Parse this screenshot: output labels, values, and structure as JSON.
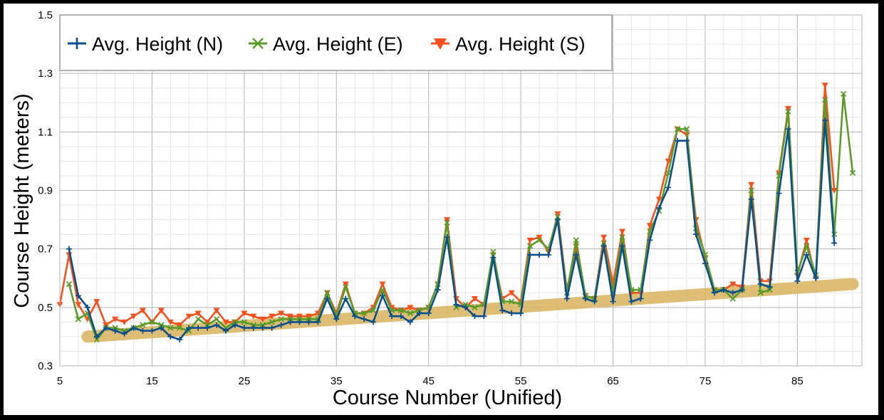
{
  "chart_data": {
    "type": "line",
    "title": "",
    "xlabel": "Course Number (Unified)",
    "ylabel": "Course Height (meters)",
    "xlim": [
      5,
      92
    ],
    "ylim": [
      0.3,
      1.5
    ],
    "xticks": [
      5,
      15,
      25,
      35,
      45,
      55,
      65,
      75,
      85
    ],
    "yticks": [
      0.3,
      0.5,
      0.7,
      0.9,
      1.1,
      1.3,
      1.5
    ],
    "grid": true,
    "legend_position": "top-left",
    "series": [
      {
        "name": "Avg. Height (N)",
        "color": "#0d4f8b",
        "marker": "plus",
        "points": [
          [
            6,
            0.7
          ],
          [
            7,
            0.54
          ],
          [
            8,
            0.5
          ],
          [
            9,
            0.4
          ],
          [
            10,
            0.43
          ],
          [
            11,
            0.42
          ],
          [
            12,
            0.41
          ],
          [
            13,
            0.43
          ],
          [
            14,
            0.42
          ],
          [
            15,
            0.42
          ],
          [
            16,
            0.43
          ],
          [
            17,
            0.4
          ],
          [
            18,
            0.39
          ],
          [
            19,
            0.43
          ],
          [
            20,
            0.43
          ],
          [
            21,
            0.43
          ],
          [
            22,
            0.44
          ],
          [
            23,
            0.42
          ],
          [
            24,
            0.44
          ],
          [
            25,
            0.43
          ],
          [
            26,
            0.43
          ],
          [
            27,
            0.43
          ],
          [
            28,
            0.43
          ],
          [
            29,
            0.44
          ],
          [
            30,
            0.45
          ],
          [
            31,
            0.45
          ],
          [
            32,
            0.45
          ],
          [
            33,
            0.45
          ],
          [
            34,
            0.53
          ],
          [
            35,
            0.46
          ],
          [
            36,
            0.53
          ],
          [
            37,
            0.47
          ],
          [
            38,
            0.46
          ],
          [
            39,
            0.45
          ],
          [
            40,
            0.54
          ],
          [
            41,
            0.47
          ],
          [
            42,
            0.47
          ],
          [
            43,
            0.45
          ],
          [
            44,
            0.48
          ],
          [
            45,
            0.48
          ],
          [
            46,
            0.56
          ],
          [
            47,
            0.74
          ],
          [
            48,
            0.51
          ],
          [
            49,
            0.5
          ],
          [
            50,
            0.47
          ],
          [
            51,
            0.47
          ],
          [
            52,
            0.67
          ],
          [
            53,
            0.49
          ],
          [
            54,
            0.48
          ],
          [
            55,
            0.48
          ],
          [
            56,
            0.68
          ],
          [
            57,
            0.68
          ],
          [
            58,
            0.68
          ],
          [
            59,
            0.8
          ],
          [
            60,
            0.53
          ],
          [
            61,
            0.68
          ],
          [
            62,
            0.53
          ],
          [
            63,
            0.52
          ],
          [
            64,
            0.71
          ],
          [
            65,
            0.52
          ],
          [
            66,
            0.71
          ],
          [
            67,
            0.52
          ],
          [
            68,
            0.53
          ],
          [
            69,
            0.73
          ],
          [
            70,
            0.84
          ],
          [
            71,
            0.91
          ],
          [
            72,
            1.07
          ],
          [
            73,
            1.07
          ],
          [
            74,
            0.75
          ],
          [
            75,
            0.65
          ],
          [
            76,
            0.55
          ],
          [
            77,
            0.56
          ],
          [
            78,
            0.55
          ],
          [
            79,
            0.56
          ],
          [
            80,
            0.87
          ],
          [
            81,
            0.58
          ],
          [
            82,
            0.57
          ],
          [
            83,
            0.89
          ],
          [
            84,
            1.11
          ],
          [
            85,
            0.59
          ],
          [
            86,
            0.68
          ],
          [
            87,
            0.6
          ],
          [
            88,
            1.14
          ],
          [
            89,
            0.72
          ]
        ]
      },
      {
        "name": "Avg. Height (E)",
        "color": "#5a9b2a",
        "marker": "x",
        "points": [
          [
            6,
            0.58
          ],
          [
            7,
            0.46
          ],
          [
            8,
            0.48
          ],
          [
            9,
            0.39
          ],
          [
            10,
            0.43
          ],
          [
            11,
            0.43
          ],
          [
            12,
            0.42
          ],
          [
            13,
            0.43
          ],
          [
            14,
            0.44
          ],
          [
            15,
            0.45
          ],
          [
            16,
            0.44
          ],
          [
            17,
            0.43
          ],
          [
            18,
            0.43
          ],
          [
            19,
            0.42
          ],
          [
            20,
            0.46
          ],
          [
            21,
            0.44
          ],
          [
            22,
            0.46
          ],
          [
            23,
            0.43
          ],
          [
            24,
            0.45
          ],
          [
            25,
            0.45
          ],
          [
            26,
            0.44
          ],
          [
            27,
            0.44
          ],
          [
            28,
            0.45
          ],
          [
            29,
            0.46
          ],
          [
            30,
            0.46
          ],
          [
            31,
            0.46
          ],
          [
            32,
            0.46
          ],
          [
            33,
            0.46
          ],
          [
            34,
            0.55
          ],
          [
            35,
            0.47
          ],
          [
            36,
            0.57
          ],
          [
            37,
            0.48
          ],
          [
            38,
            0.48
          ],
          [
            39,
            0.49
          ],
          [
            40,
            0.56
          ],
          [
            41,
            0.49
          ],
          [
            42,
            0.49
          ],
          [
            43,
            0.48
          ],
          [
            44,
            0.49
          ],
          [
            45,
            0.5
          ],
          [
            46,
            0.58
          ],
          [
            47,
            0.79
          ],
          [
            48,
            0.5
          ],
          [
            49,
            0.51
          ],
          [
            50,
            0.5
          ],
          [
            51,
            0.51
          ],
          [
            52,
            0.69
          ],
          [
            53,
            0.52
          ],
          [
            54,
            0.52
          ],
          [
            55,
            0.51
          ],
          [
            56,
            0.71
          ],
          [
            57,
            0.73
          ],
          [
            58,
            0.7
          ],
          [
            59,
            0.81
          ],
          [
            60,
            0.55
          ],
          [
            61,
            0.73
          ],
          [
            62,
            0.54
          ],
          [
            63,
            0.53
          ],
          [
            64,
            0.72
          ],
          [
            65,
            0.55
          ],
          [
            66,
            0.74
          ],
          [
            67,
            0.56
          ],
          [
            68,
            0.56
          ],
          [
            69,
            0.76
          ],
          [
            70,
            0.83
          ],
          [
            71,
            0.96
          ],
          [
            72,
            1.11
          ],
          [
            73,
            1.11
          ],
          [
            74,
            0.77
          ],
          [
            75,
            0.68
          ],
          [
            76,
            0.56
          ],
          [
            77,
            0.56
          ],
          [
            78,
            0.53
          ],
          [
            79,
            0.56
          ],
          [
            80,
            0.9
          ],
          [
            81,
            0.55
          ],
          [
            82,
            0.56
          ],
          [
            83,
            0.95
          ],
          [
            84,
            1.17
          ],
          [
            85,
            0.62
          ],
          [
            86,
            0.71
          ],
          [
            87,
            0.61
          ],
          [
            88,
            1.21
          ],
          [
            89,
            0.75
          ],
          [
            90,
            1.23
          ],
          [
            91,
            0.96
          ]
        ]
      },
      {
        "name": "Avg. Height (S)",
        "color": "#f4511e",
        "marker": "triangle-down",
        "points": [
          [
            5,
            0.51
          ],
          [
            6,
            0.68
          ],
          [
            7,
            0.51
          ],
          [
            8,
            0.46
          ],
          [
            9,
            0.52
          ],
          [
            10,
            0.44
          ],
          [
            11,
            0.46
          ],
          [
            12,
            0.45
          ],
          [
            13,
            0.47
          ],
          [
            14,
            0.49
          ],
          [
            15,
            0.45
          ],
          [
            16,
            0.49
          ],
          [
            17,
            0.45
          ],
          [
            18,
            0.44
          ],
          [
            19,
            0.47
          ],
          [
            20,
            0.48
          ],
          [
            21,
            0.45
          ],
          [
            22,
            0.49
          ],
          [
            23,
            0.45
          ],
          [
            24,
            0.45
          ],
          [
            25,
            0.48
          ],
          [
            26,
            0.47
          ],
          [
            27,
            0.46
          ],
          [
            28,
            0.47
          ],
          [
            29,
            0.48
          ],
          [
            30,
            0.47
          ],
          [
            31,
            0.47
          ],
          [
            32,
            0.47
          ],
          [
            33,
            0.48
          ],
          [
            34,
            0.55
          ],
          [
            35,
            0.48
          ],
          [
            36,
            0.58
          ],
          [
            37,
            0.48
          ],
          [
            38,
            0.48
          ],
          [
            39,
            0.5
          ],
          [
            40,
            0.58
          ],
          [
            41,
            0.5
          ],
          [
            42,
            0.49
          ],
          [
            43,
            0.5
          ],
          [
            44,
            0.49
          ],
          [
            45,
            0.5
          ],
          [
            46,
            0.58
          ],
          [
            47,
            0.8
          ],
          [
            48,
            0.53
          ],
          [
            49,
            0.5
          ],
          [
            50,
            0.53
          ],
          [
            51,
            0.51
          ],
          [
            52,
            0.68
          ],
          [
            53,
            0.53
          ],
          [
            54,
            0.55
          ],
          [
            55,
            0.52
          ],
          [
            56,
            0.73
          ],
          [
            57,
            0.74
          ],
          [
            58,
            0.69
          ],
          [
            59,
            0.82
          ],
          [
            60,
            0.56
          ],
          [
            61,
            0.71
          ],
          [
            62,
            0.54
          ],
          [
            63,
            0.53
          ],
          [
            64,
            0.74
          ],
          [
            65,
            0.58
          ],
          [
            66,
            0.76
          ],
          [
            67,
            0.55
          ],
          [
            68,
            0.55
          ],
          [
            69,
            0.78
          ],
          [
            70,
            0.87
          ],
          [
            71,
            1.0
          ],
          [
            72,
            1.11
          ],
          [
            73,
            1.09
          ],
          [
            74,
            0.8
          ],
          [
            75,
            0.67
          ],
          [
            76,
            0.56
          ],
          [
            77,
            0.56
          ],
          [
            78,
            0.58
          ],
          [
            79,
            0.57
          ],
          [
            80,
            0.92
          ],
          [
            81,
            0.59
          ],
          [
            82,
            0.59
          ],
          [
            83,
            0.96
          ],
          [
            84,
            1.18
          ],
          [
            85,
            0.61
          ],
          [
            86,
            0.73
          ],
          [
            87,
            0.6
          ],
          [
            88,
            1.26
          ],
          [
            89,
            0.9
          ]
        ]
      }
    ],
    "trend_band": {
      "color": "#dbb866",
      "from": [
        8,
        0.4
      ],
      "to": [
        91,
        0.58
      ]
    }
  }
}
